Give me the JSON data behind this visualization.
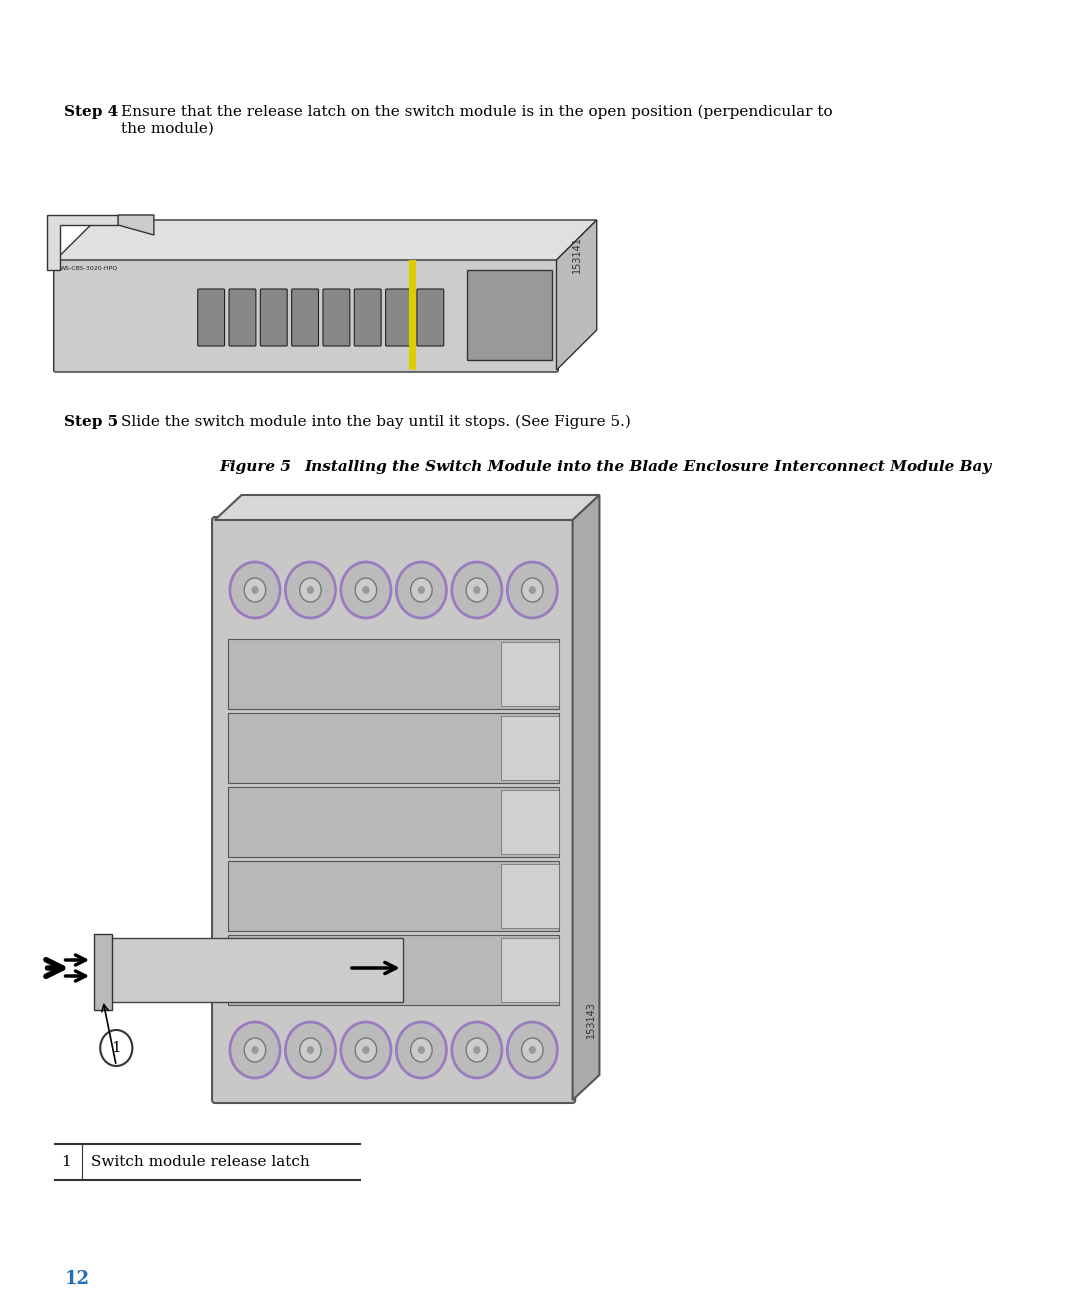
{
  "bg_color": "#ffffff",
  "step4_label": "Step 4",
  "step4_text": "Ensure that the release latch on the switch module is in the open position (perpendicular to\nthe module)",
  "step5_label": "Step 5",
  "step5_text": "Slide the switch module into the bay until it stops. (See Figure 5.)",
  "figure5_label": "Figure 5",
  "figure5_title": "Installing the Switch Module into the Blade Enclosure Interconnect Module Bay",
  "legend_num": "1",
  "legend_text": "Switch module release latch",
  "page_num": "12",
  "page_color": "#1f6eb5",
  "step_bold_color": "#000000",
  "text_color": "#000000",
  "figure_label_color": "#000000"
}
